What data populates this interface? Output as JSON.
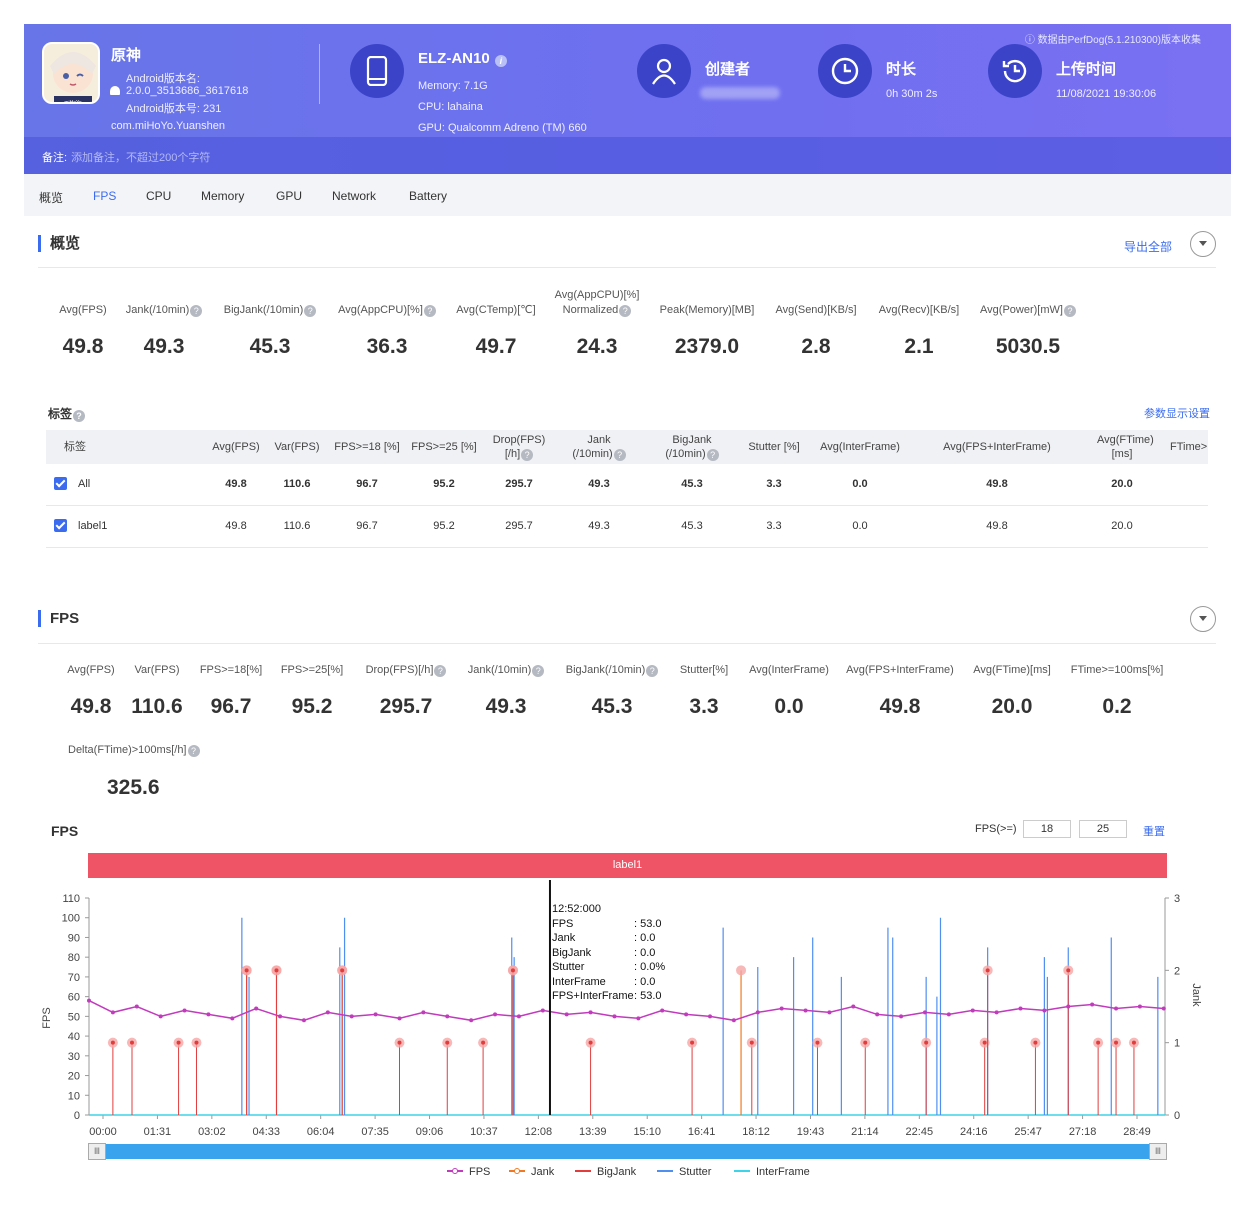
{
  "header": {
    "source_note": "数据由PerfDog(5.1.210300)版本收集",
    "app": {
      "name": "原神",
      "version_name_label": "Android版本名:",
      "version_name": "2.0.0_3513686_3617618",
      "version_code": "Android版本号: 231",
      "package": "com.miHoYo.Yuanshen",
      "icon_caption": "miHoYo"
    },
    "device": {
      "name": "ELZ-AN10",
      "memory": "Memory: 7.1G",
      "cpu": "CPU: lahaina",
      "gpu": "GPU: Qualcomm Adreno (TM) 660"
    },
    "creator_label": "创建者",
    "duration_label": "时长",
    "duration_value": "0h 30m 2s",
    "upload_label": "上传时间",
    "upload_value": "11/08/2021 19:30:06",
    "note_label": "备注:",
    "note_placeholder": "添加备注，不超过200个字符"
  },
  "tabs": [
    "概览",
    "FPS",
    "CPU",
    "Memory",
    "GPU",
    "Network",
    "Battery"
  ],
  "active_tab": "FPS",
  "overview": {
    "title": "概览",
    "export_label": "导出全部",
    "metrics": [
      {
        "label": "Avg(FPS)",
        "value": "49.8",
        "help": false
      },
      {
        "label": "Jank(/10min)",
        "value": "49.3",
        "help": true
      },
      {
        "label": "BigJank(/10min)",
        "value": "45.3",
        "help": true
      },
      {
        "label": "Avg(AppCPU)[%]",
        "value": "36.3",
        "help": true
      },
      {
        "label": "Avg(CTemp)[℃]",
        "value": "49.7",
        "help": false
      },
      {
        "label": "Avg(AppCPU)[%] Normalized",
        "value": "24.3",
        "help": true
      },
      {
        "label": "Peak(Memory)[MB]",
        "value": "2379.0",
        "help": false
      },
      {
        "label": "Avg(Send)[KB/s]",
        "value": "2.8",
        "help": false
      },
      {
        "label": "Avg(Recv)[KB/s]",
        "value": "2.1",
        "help": false
      },
      {
        "label": "Avg(Power)[mW]",
        "value": "5030.5",
        "help": true
      }
    ]
  },
  "labels_section": {
    "title": "标签",
    "settings_link": "参数显示设置",
    "columns": [
      "标签",
      "Avg(FPS)",
      "Var(FPS)",
      "FPS>=18 [%]",
      "FPS>=25 [%]",
      "Drop(FPS) [/h]",
      "Jank (/10min)",
      "BigJank (/10min)",
      "Stutter [%]",
      "Avg(InterFrame)",
      "Avg(FPS+InterFrame)",
      "Avg(FTime) [ms]",
      "FTime>"
    ],
    "rows": [
      {
        "name": "All",
        "values": [
          "49.8",
          "110.6",
          "96.7",
          "95.2",
          "295.7",
          "49.3",
          "45.3",
          "3.3",
          "0.0",
          "49.8",
          "20.0"
        ]
      },
      {
        "name": "label1",
        "values": [
          "49.8",
          "110.6",
          "96.7",
          "95.2",
          "295.7",
          "49.3",
          "45.3",
          "3.3",
          "0.0",
          "49.8",
          "20.0"
        ]
      }
    ]
  },
  "fps_section": {
    "title": "FPS",
    "metrics": [
      {
        "label": "Avg(FPS)",
        "value": "49.8",
        "help": false
      },
      {
        "label": "Var(FPS)",
        "value": "110.6",
        "help": false
      },
      {
        "label": "FPS>=18[%]",
        "value": "96.7",
        "help": false
      },
      {
        "label": "FPS>=25[%]",
        "value": "95.2",
        "help": false
      },
      {
        "label": "Drop(FPS)[/h]",
        "value": "295.7",
        "help": true
      },
      {
        "label": "Jank(/10min)",
        "value": "49.3",
        "help": true
      },
      {
        "label": "BigJank(/10min)",
        "value": "45.3",
        "help": true
      },
      {
        "label": "Stutter[%]",
        "value": "3.3",
        "help": false
      },
      {
        "label": "Avg(InterFrame)",
        "value": "0.0",
        "help": false
      },
      {
        "label": "Avg(FPS+InterFrame)",
        "value": "49.8",
        "help": false
      },
      {
        "label": "Avg(FTime)[ms]",
        "value": "20.0",
        "help": false
      },
      {
        "label": "FTime>=100ms[%]",
        "value": "0.2",
        "help": false
      }
    ],
    "extra_metric": {
      "label": "Delta(FTime)>100ms[/h]",
      "value": "325.6",
      "help": true
    }
  },
  "chart_controls": {
    "title": "FPS",
    "threshold_label": "FPS(>=)",
    "threshold_1": "18",
    "threshold_2": "25",
    "reset_label": "重置",
    "label_band": "label1"
  },
  "tooltip": {
    "time": "12:52:000",
    "rows": [
      {
        "k": "FPS",
        "v": ": 53.0"
      },
      {
        "k": "Jank",
        "v": ": 0.0"
      },
      {
        "k": "BigJank",
        "v": ": 0.0"
      },
      {
        "k": "Stutter",
        "v": ": 0.0%"
      },
      {
        "k": "InterFrame",
        "v": ": 0.0"
      },
      {
        "k": "FPS+InterFrame",
        "v": ": 53.0"
      }
    ]
  },
  "chart_data": {
    "type": "line",
    "title": "FPS",
    "ylabel": "FPS",
    "y2label": "Jank",
    "ylim": [
      0,
      110
    ],
    "y2lim": [
      0,
      3
    ],
    "yticks": [
      0,
      10,
      20,
      30,
      40,
      50,
      60,
      70,
      80,
      90,
      100,
      110
    ],
    "y2ticks": [
      0,
      1,
      2,
      3
    ],
    "x_tick_labels": [
      "00:00",
      "01:31",
      "03:02",
      "04:33",
      "06:04",
      "07:35",
      "09:06",
      "10:37",
      "12:08",
      "13:39",
      "15:10",
      "16:41",
      "18:12",
      "19:43",
      "21:14",
      "22:45",
      "24:16",
      "25:47",
      "27:18",
      "28:49"
    ],
    "x_range_seconds": [
      0,
      1802
    ],
    "cursor_time_seconds": 772,
    "series": [
      {
        "name": "FPS",
        "color": "#c23bbd",
        "x_seconds": [
          0,
          40,
          80,
          120,
          160,
          200,
          240,
          280,
          320,
          360,
          400,
          440,
          480,
          520,
          560,
          600,
          640,
          680,
          720,
          760,
          800,
          840,
          880,
          920,
          960,
          1000,
          1040,
          1080,
          1120,
          1160,
          1200,
          1240,
          1280,
          1320,
          1360,
          1400,
          1440,
          1480,
          1520,
          1560,
          1600,
          1640,
          1680,
          1720,
          1760,
          1800
        ],
        "values": [
          58,
          52,
          55,
          50,
          53,
          51,
          49,
          54,
          50,
          48,
          52,
          50,
          51,
          49,
          52,
          50,
          48,
          51,
          50,
          53,
          51,
          52,
          50,
          49,
          53,
          51,
          50,
          48,
          52,
          54,
          53,
          52,
          55,
          51,
          50,
          52,
          51,
          53,
          52,
          54,
          53,
          55,
          56,
          54,
          55,
          54
        ]
      },
      {
        "name": "Jank",
        "color": "#f07a24",
        "x_seconds": [
          264,
          314,
          424,
          710,
          1092
        ],
        "values": [
          2,
          2,
          2,
          2,
          2
        ]
      },
      {
        "name": "BigJank",
        "color": "#e13d3d",
        "x_seconds": [
          40,
          72,
          150,
          180,
          264,
          314,
          424,
          520,
          600,
          660,
          710,
          840,
          1010,
          1110,
          1220,
          1300,
          1402,
          1500,
          1505,
          1585,
          1640,
          1690,
          1720,
          1750
        ],
        "values": [
          1,
          1,
          1,
          1,
          2,
          2,
          2,
          1,
          1,
          1,
          2,
          1,
          1,
          1,
          1,
          1,
          1,
          1,
          2,
          1,
          2,
          1,
          1,
          1
        ]
      },
      {
        "name": "Stutter",
        "color": "#4f8ff0",
        "x_seconds": [
          256,
          268,
          420,
          428,
          708,
          712,
          1062,
          1120,
          1180,
          1212,
          1260,
          1338,
          1346,
          1402,
          1420,
          1426,
          1505,
          1600,
          1605,
          1640,
          1712,
          1790
        ],
        "values": [
          100,
          70,
          85,
          100,
          90,
          80,
          95,
          75,
          80,
          90,
          70,
          95,
          90,
          70,
          60,
          100,
          85,
          80,
          70,
          85,
          90,
          70
        ]
      },
      {
        "name": "InterFrame",
        "color": "#3dd3e8",
        "x_seconds": [
          0,
          1802
        ],
        "values": [
          0,
          0
        ]
      }
    ],
    "legend": [
      "FPS",
      "Jank",
      "BigJank",
      "Stutter",
      "InterFrame"
    ],
    "legend_position": "bottom-center"
  }
}
